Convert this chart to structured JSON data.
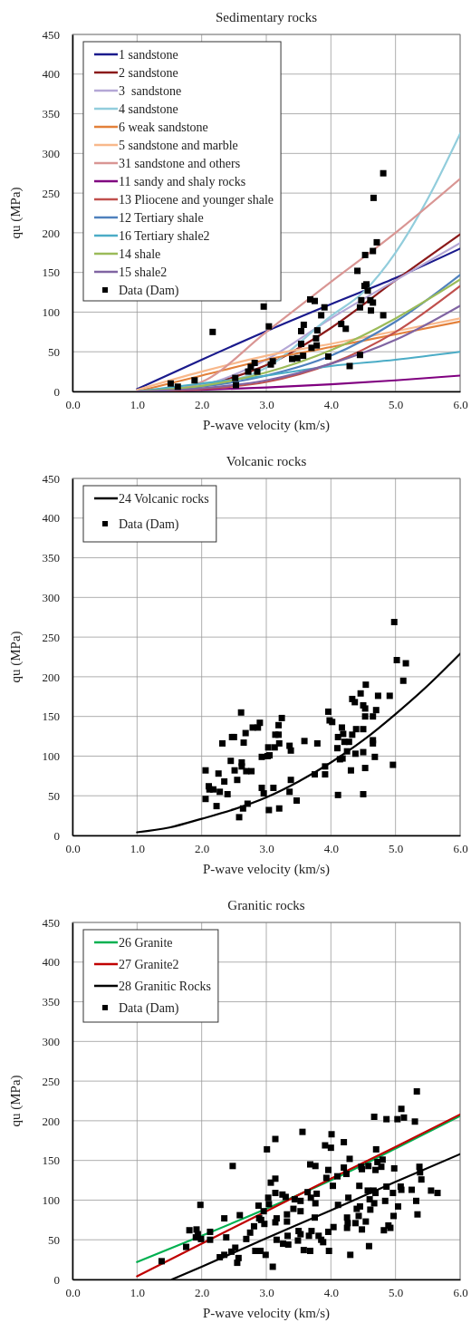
{
  "chart_data": [
    {
      "type": "line",
      "title": "Sedimentary rocks",
      "xlabel": "P-wave velocity (km/s)",
      "ylabel": "qu (MPa)",
      "xlim": [
        0,
        6
      ],
      "xticks": [
        {
          "value": 0,
          "label": "0.0"
        },
        {
          "value": 1,
          "label": "1.0"
        },
        {
          "value": 2,
          "label": "2.0"
        },
        {
          "value": 3,
          "label": "3.0"
        },
        {
          "value": 4,
          "label": "4.0"
        },
        {
          "value": 5,
          "label": "5.0"
        },
        {
          "value": 6,
          "label": "6.0"
        }
      ],
      "ylim": [
        0,
        450
      ],
      "yticks": [
        0,
        50,
        100,
        150,
        200,
        250,
        300,
        350,
        400,
        450
      ],
      "grid": true,
      "legend": "top left",
      "series": [
        {
          "name": "1 sandstone",
          "color": "#1a1a8c",
          "x": [
            1,
            2,
            3,
            4,
            5,
            6
          ],
          "values": [
            3,
            40,
            76,
            110,
            143,
            180
          ]
        },
        {
          "name": "2 sandstone",
          "color": "#8b1a1a",
          "x": [
            1,
            2,
            3,
            4,
            5,
            6
          ],
          "values": [
            0,
            8,
            33,
            80,
            140,
            198
          ]
        },
        {
          "name": "3  sandstone",
          "color": "#b4a7d6",
          "x": [
            1,
            2,
            3,
            4,
            5,
            6
          ],
          "values": [
            0,
            8,
            40,
            92,
            140,
            187
          ]
        },
        {
          "name": "4 sandstone",
          "color": "#92cddc",
          "x": [
            1,
            2,
            3,
            4,
            4.5,
            5,
            5.5,
            6
          ],
          "values": [
            0,
            7,
            30,
            95,
            125,
            175,
            243,
            325
          ]
        },
        {
          "name": "6 weak sandstone",
          "color": "#e3803a",
          "x": [
            1,
            2,
            3,
            4,
            5,
            6
          ],
          "values": [
            0,
            20,
            40,
            56,
            72,
            88
          ]
        },
        {
          "name": "5 sandstone and marble",
          "color": "#f8b88b",
          "x": [
            1,
            2,
            3,
            4,
            5,
            6
          ],
          "values": [
            2,
            25,
            45,
            60,
            76,
            92
          ]
        },
        {
          "name": "31 sandstone and others",
          "color": "#d99694",
          "x": [
            1,
            1.5,
            2,
            3,
            4,
            5,
            6
          ],
          "values": [
            0,
            2,
            12,
            75,
            138,
            200,
            268
          ]
        },
        {
          "name": "11 sandy and shaly rocks",
          "color": "#800080",
          "x": [
            1,
            2,
            3,
            4,
            5,
            6
          ],
          "values": [
            0,
            2,
            5,
            9,
            14,
            20
          ]
        },
        {
          "name": "13 Pliocene and younger shale",
          "color": "#c0504d",
          "x": [
            1,
            2,
            3,
            4,
            5,
            6
          ],
          "values": [
            0,
            3,
            12,
            35,
            75,
            133
          ]
        },
        {
          "name": "12 Tertiary shale",
          "color": "#4f81bd",
          "x": [
            1,
            2,
            3,
            4,
            5,
            6
          ],
          "values": [
            0,
            6,
            20,
            45,
            88,
            147
          ]
        },
        {
          "name": "16 Tertiary shale2",
          "color": "#4bacc6",
          "x": [
            1,
            2,
            3,
            4,
            5,
            6
          ],
          "values": [
            0,
            10,
            20,
            32,
            40,
            50
          ]
        },
        {
          "name": "14 shale",
          "color": "#9bbb59",
          "x": [
            1,
            2,
            3,
            4,
            5,
            6
          ],
          "values": [
            0,
            7,
            24,
            52,
            92,
            141
          ]
        },
        {
          "name": "15 shale2",
          "color": "#8064a2",
          "x": [
            1,
            2,
            3,
            4,
            5,
            6
          ],
          "values": [
            0,
            4,
            14,
            35,
            65,
            108
          ]
        },
        {
          "name": "Data (Dam)",
          "type": "scatter",
          "marker": "square",
          "color": "#000000",
          "x": [
            1.52,
            1.63,
            1.89,
            2.17,
            2.52,
            2.53,
            2.72,
            2.76,
            2.82,
            2.86,
            2.96,
            3.04,
            3.07,
            3.1,
            3.4,
            3.48,
            3.54,
            3.54,
            3.58,
            3.57,
            3.7,
            3.68,
            3.75,
            3.77,
            3.79,
            3.78,
            3.85,
            3.9,
            3.96,
            4.16,
            4.23,
            4.29,
            4.41,
            4.45,
            4.45,
            4.47,
            4.52,
            4.55,
            4.57,
            4.61,
            4.62,
            4.65,
            4.53,
            4.65,
            4.71,
            4.81,
            4.81,
            4.66
          ],
          "values": [
            10,
            6,
            14,
            75,
            17,
            8,
            25,
            31,
            36,
            25,
            107,
            82,
            34,
            38,
            41,
            42,
            60,
            76,
            84,
            45,
            55,
            116,
            114,
            67,
            77,
            58,
            96,
            106,
            44,
            85,
            79,
            32,
            152,
            106,
            46,
            115,
            133,
            135,
            127,
            115,
            102,
            112,
            172,
            177,
            188,
            96,
            275,
            244
          ]
        }
      ]
    },
    {
      "type": "line",
      "title": "Volcanic rocks",
      "xlabel": "P-wave velocity (km/s)",
      "ylabel": "qu (MPa)",
      "xlim": [
        0,
        6
      ],
      "xticks": [
        {
          "value": 0,
          "label": "0.0"
        },
        {
          "value": 1,
          "label": "1.0"
        },
        {
          "value": 2,
          "label": "2.0"
        },
        {
          "value": 3,
          "label": "3.0"
        },
        {
          "value": 4,
          "label": "4.0"
        },
        {
          "value": 5,
          "label": "5.0"
        },
        {
          "value": 6,
          "label": "6.0"
        }
      ],
      "ylim": [
        0,
        450
      ],
      "yticks": [
        0,
        50,
        100,
        150,
        200,
        250,
        300,
        350,
        400,
        450
      ],
      "grid": true,
      "legend": "top left",
      "series": [
        {
          "name": "24 Volcanic rocks",
          "color": "#000000",
          "x": [
            1,
            1.5,
            2,
            2.5,
            3,
            3.5,
            4,
            4.5,
            5,
            5.5,
            6
          ],
          "values": [
            4,
            10,
            21,
            33,
            48,
            68,
            92,
            120,
            153,
            189,
            229
          ]
        },
        {
          "name": "Data (Dam)",
          "type": "scatter",
          "marker": "square",
          "color": "#000000",
          "x": [
            2.06,
            2.06,
            2.11,
            2.12,
            2.18,
            2.23,
            2.26,
            2.28,
            2.32,
            2.35,
            2.4,
            2.45,
            2.47,
            2.5,
            2.51,
            2.55,
            2.58,
            2.61,
            2.62,
            2.64,
            2.65,
            2.62,
            2.68,
            2.69,
            2.71,
            2.77,
            2.79,
            2.87,
            2.9,
            2.93,
            2.93,
            2.96,
            3.02,
            3.04,
            3.03,
            3.05,
            3.11,
            3.13,
            3.14,
            3.19,
            3.19,
            3.2,
            3.2,
            3.24,
            3.36,
            3.36,
            3.38,
            3.38,
            3.47,
            3.59,
            3.75,
            3.79,
            3.91,
            3.91,
            3.96,
            3.98,
            4.02,
            4.1,
            4.11,
            4.11,
            4.14,
            4.17,
            4.18,
            4.19,
            4.21,
            4.25,
            4.28,
            4.31,
            4.33,
            4.33,
            4.37,
            4.38,
            4.39,
            4.46,
            4.5,
            4.5,
            4.5,
            4.5,
            4.53,
            4.53,
            4.53,
            4.54,
            4.65,
            4.65,
            4.65,
            4.68,
            4.7,
            4.73,
            4.91,
            4.96,
            4.98,
            5.02,
            5.12,
            5.16
          ],
          "values": [
            82,
            46,
            62,
            58,
            58,
            37,
            78,
            55,
            116,
            68,
            52,
            94,
            124,
            124,
            82,
            70,
            23,
            155,
            92,
            34,
            117,
            87,
            129,
            81,
            40,
            81,
            136,
            136,
            142,
            60,
            99,
            53,
            100,
            32,
            111,
            101,
            60,
            111,
            127,
            139,
            127,
            34,
            116,
            148,
            113,
            55,
            70,
            107,
            44,
            119,
            77,
            116,
            87,
            77,
            156,
            145,
            143,
            110,
            124,
            51,
            96,
            136,
            97,
            128,
            118,
            106,
            118,
            82,
            172,
            127,
            168,
            103,
            134,
            179,
            52,
            164,
            134,
            105,
            85,
            150,
            160,
            190,
            120,
            150,
            116,
            99,
            158,
            176,
            176,
            89,
            269,
            221,
            195,
            217
          ]
        }
      ]
    },
    {
      "type": "line",
      "title": "Granitic rocks",
      "xlabel": "P-wave velocity (km/s)",
      "ylabel": "qu (MPa)",
      "xlim": [
        0,
        6
      ],
      "xticks": [
        {
          "value": 0,
          "label": "0.0"
        },
        {
          "value": 1,
          "label": "1.0"
        },
        {
          "value": 2,
          "label": "2.0"
        },
        {
          "value": 3,
          "label": "3.0"
        },
        {
          "value": 4,
          "label": "4.0"
        },
        {
          "value": 5,
          "label": "5.0"
        },
        {
          "value": 6,
          "label": "6.0"
        }
      ],
      "ylim": [
        0,
        450
      ],
      "yticks": [
        0,
        50,
        100,
        150,
        200,
        250,
        300,
        350,
        400,
        450
      ],
      "grid": true,
      "legend": "top left",
      "series": [
        {
          "name": "26 Granite",
          "color": "#00b050",
          "x": [
            1,
            2,
            3,
            4,
            5,
            6
          ],
          "values": [
            22,
            55,
            89,
            125,
            165,
            206
          ]
        },
        {
          "name": "27 Granite2",
          "color": "#c00000",
          "x": [
            1,
            2,
            3,
            4,
            5,
            6
          ],
          "values": [
            4,
            45,
            86,
            127,
            167,
            208
          ]
        },
        {
          "name": "28 Granitic Rocks",
          "color": "#000000",
          "x": [
            1.54,
            2,
            3,
            4,
            5,
            6
          ],
          "values": [
            0,
            16,
            52,
            87,
            123,
            158
          ]
        },
        {
          "name": "Data (Dam)",
          "type": "scatter",
          "marker": "square",
          "color": "#000000",
          "x": [
            1.38,
            1.76,
            1.81,
            1.92,
            1.94,
            1.91,
            1.98,
            1.99,
            2.13,
            2.13,
            2.28,
            2.35,
            2.35,
            2.38,
            2.46,
            2.48,
            2.52,
            2.55,
            2.57,
            2.59,
            2.69,
            2.75,
            2.81,
            2.83,
            2.88,
            2.89,
            2.91,
            2.92,
            2.96,
            2.97,
            2.99,
            3.01,
            3.03,
            3.04,
            3.07,
            3.1,
            3.14,
            3.14,
            3.14,
            3.14,
            3.16,
            3.16,
            3.25,
            3.26,
            3.3,
            3.32,
            3.32,
            3.33,
            3.34,
            3.42,
            3.44,
            3.49,
            3.5,
            3.53,
            3.53,
            3.53,
            3.56,
            3.58,
            3.64,
            3.66,
            3.68,
            3.68,
            3.69,
            3.7,
            3.75,
            3.76,
            3.76,
            3.78,
            3.81,
            3.85,
            3.88,
            3.91,
            3.93,
            3.96,
            3.97,
            3.96,
            4.0,
            4.01,
            4.03,
            4.04,
            4.11,
            4.1,
            4.2,
            4.2,
            4.24,
            4.25,
            4.25,
            4.26,
            4.27,
            4.29,
            4.3,
            4.38,
            4.4,
            4.43,
            4.44,
            4.45,
            4.47,
            4.48,
            4.48,
            4.54,
            4.57,
            4.58,
            4.59,
            4.6,
            4.61,
            4.66,
            4.67,
            4.67,
            4.69,
            4.69,
            4.7,
            4.72,
            4.78,
            4.8,
            4.82,
            4.84,
            4.86,
            4.86,
            4.89,
            4.92,
            4.96,
            4.97,
            4.98,
            5.03,
            5.04,
            5.08,
            5.09,
            5.09,
            5.13,
            5.25,
            5.3,
            5.32,
            5.33,
            5.34,
            5.37,
            5.38,
            5.4,
            5.55,
            5.65
          ],
          "values": [
            23,
            41,
            62,
            63,
            57,
            53,
            94,
            51,
            60,
            50,
            28,
            77,
            31,
            53,
            35,
            143,
            40,
            21,
            27,
            81,
            51,
            59,
            67,
            36,
            93,
            77,
            36,
            75,
            86,
            70,
            31,
            164,
            103,
            95,
            122,
            16,
            177,
            127,
            109,
            72,
            77,
            50,
            107,
            45,
            104,
            82,
            73,
            55,
            44,
            89,
            101,
            49,
            61,
            99,
            86,
            57,
            186,
            37,
            110,
            55,
            145,
            36,
            103,
            61,
            78,
            143,
            96,
            108,
            55,
            50,
            47,
            169,
            128,
            138,
            36,
            60,
            166,
            183,
            118,
            66,
            94,
            130,
            173,
            141,
            133,
            78,
            65,
            71,
            103,
            152,
            31,
            71,
            89,
            80,
            118,
            92,
            142,
            139,
            63,
            73,
            112,
            143,
            42,
            101,
            88,
            112,
            205,
            96,
            138,
            109,
            164,
            148,
            142,
            151,
            62,
            99,
            202,
            117,
            68,
            65,
            109,
            80,
            140,
            202,
            92,
            117,
            215,
            113,
            204,
            113,
            199,
            99,
            237,
            82,
            142,
            135,
            126,
            112,
            109
          ]
        }
      ]
    }
  ]
}
